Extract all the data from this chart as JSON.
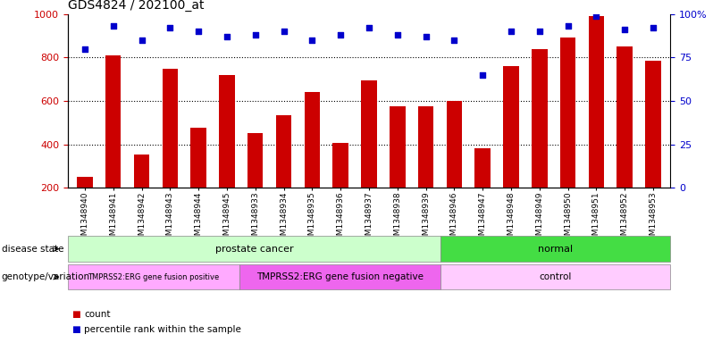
{
  "title": "GDS4824 / 202100_at",
  "samples": [
    "GSM1348940",
    "GSM1348941",
    "GSM1348942",
    "GSM1348943",
    "GSM1348944",
    "GSM1348945",
    "GSM1348933",
    "GSM1348934",
    "GSM1348935",
    "GSM1348936",
    "GSM1348937",
    "GSM1348938",
    "GSM1348939",
    "GSM1348946",
    "GSM1348947",
    "GSM1348948",
    "GSM1348949",
    "GSM1348950",
    "GSM1348951",
    "GSM1348952",
    "GSM1348953"
  ],
  "counts": [
    250,
    810,
    355,
    750,
    475,
    720,
    450,
    535,
    640,
    405,
    695,
    575,
    575,
    600,
    380,
    760,
    840,
    890,
    990,
    850,
    785
  ],
  "percentile_ranks": [
    80,
    93,
    85,
    92,
    90,
    87,
    88,
    90,
    85,
    88,
    92,
    88,
    87,
    85,
    65,
    90,
    90,
    93,
    99,
    91,
    92
  ],
  "bar_color": "#cc0000",
  "dot_color": "#0000cc",
  "ylim_left": [
    200,
    1000
  ],
  "ylim_right": [
    0,
    100
  ],
  "yticks_left": [
    200,
    400,
    600,
    800,
    1000
  ],
  "yticks_right": [
    0,
    25,
    50,
    75,
    100
  ],
  "grid_values": [
    400,
    600,
    800
  ],
  "disease_state_groups": [
    {
      "label": "prostate cancer",
      "start": 0,
      "end": 12,
      "color": "#ccffcc"
    },
    {
      "label": "normal",
      "start": 13,
      "end": 20,
      "color": "#44dd44"
    }
  ],
  "genotype_groups": [
    {
      "label": "TMPRSS2:ERG gene fusion positive",
      "start": 0,
      "end": 5,
      "color": "#ffaaff",
      "fontsize": 6.0
    },
    {
      "label": "TMPRSS2:ERG gene fusion negative",
      "start": 6,
      "end": 12,
      "color": "#ee66ee",
      "fontsize": 7.5
    },
    {
      "label": "control",
      "start": 13,
      "end": 20,
      "color": "#ffccff",
      "fontsize": 7.5
    }
  ],
  "legend_items": [
    {
      "label": "count",
      "color": "#cc0000"
    },
    {
      "label": "percentile rank within the sample",
      "color": "#0000cc"
    }
  ],
  "ylabel_left_color": "#cc0000",
  "ylabel_right_color": "#0000cc",
  "row_label_disease": "disease state",
  "row_label_genotype": "genotype/variation"
}
